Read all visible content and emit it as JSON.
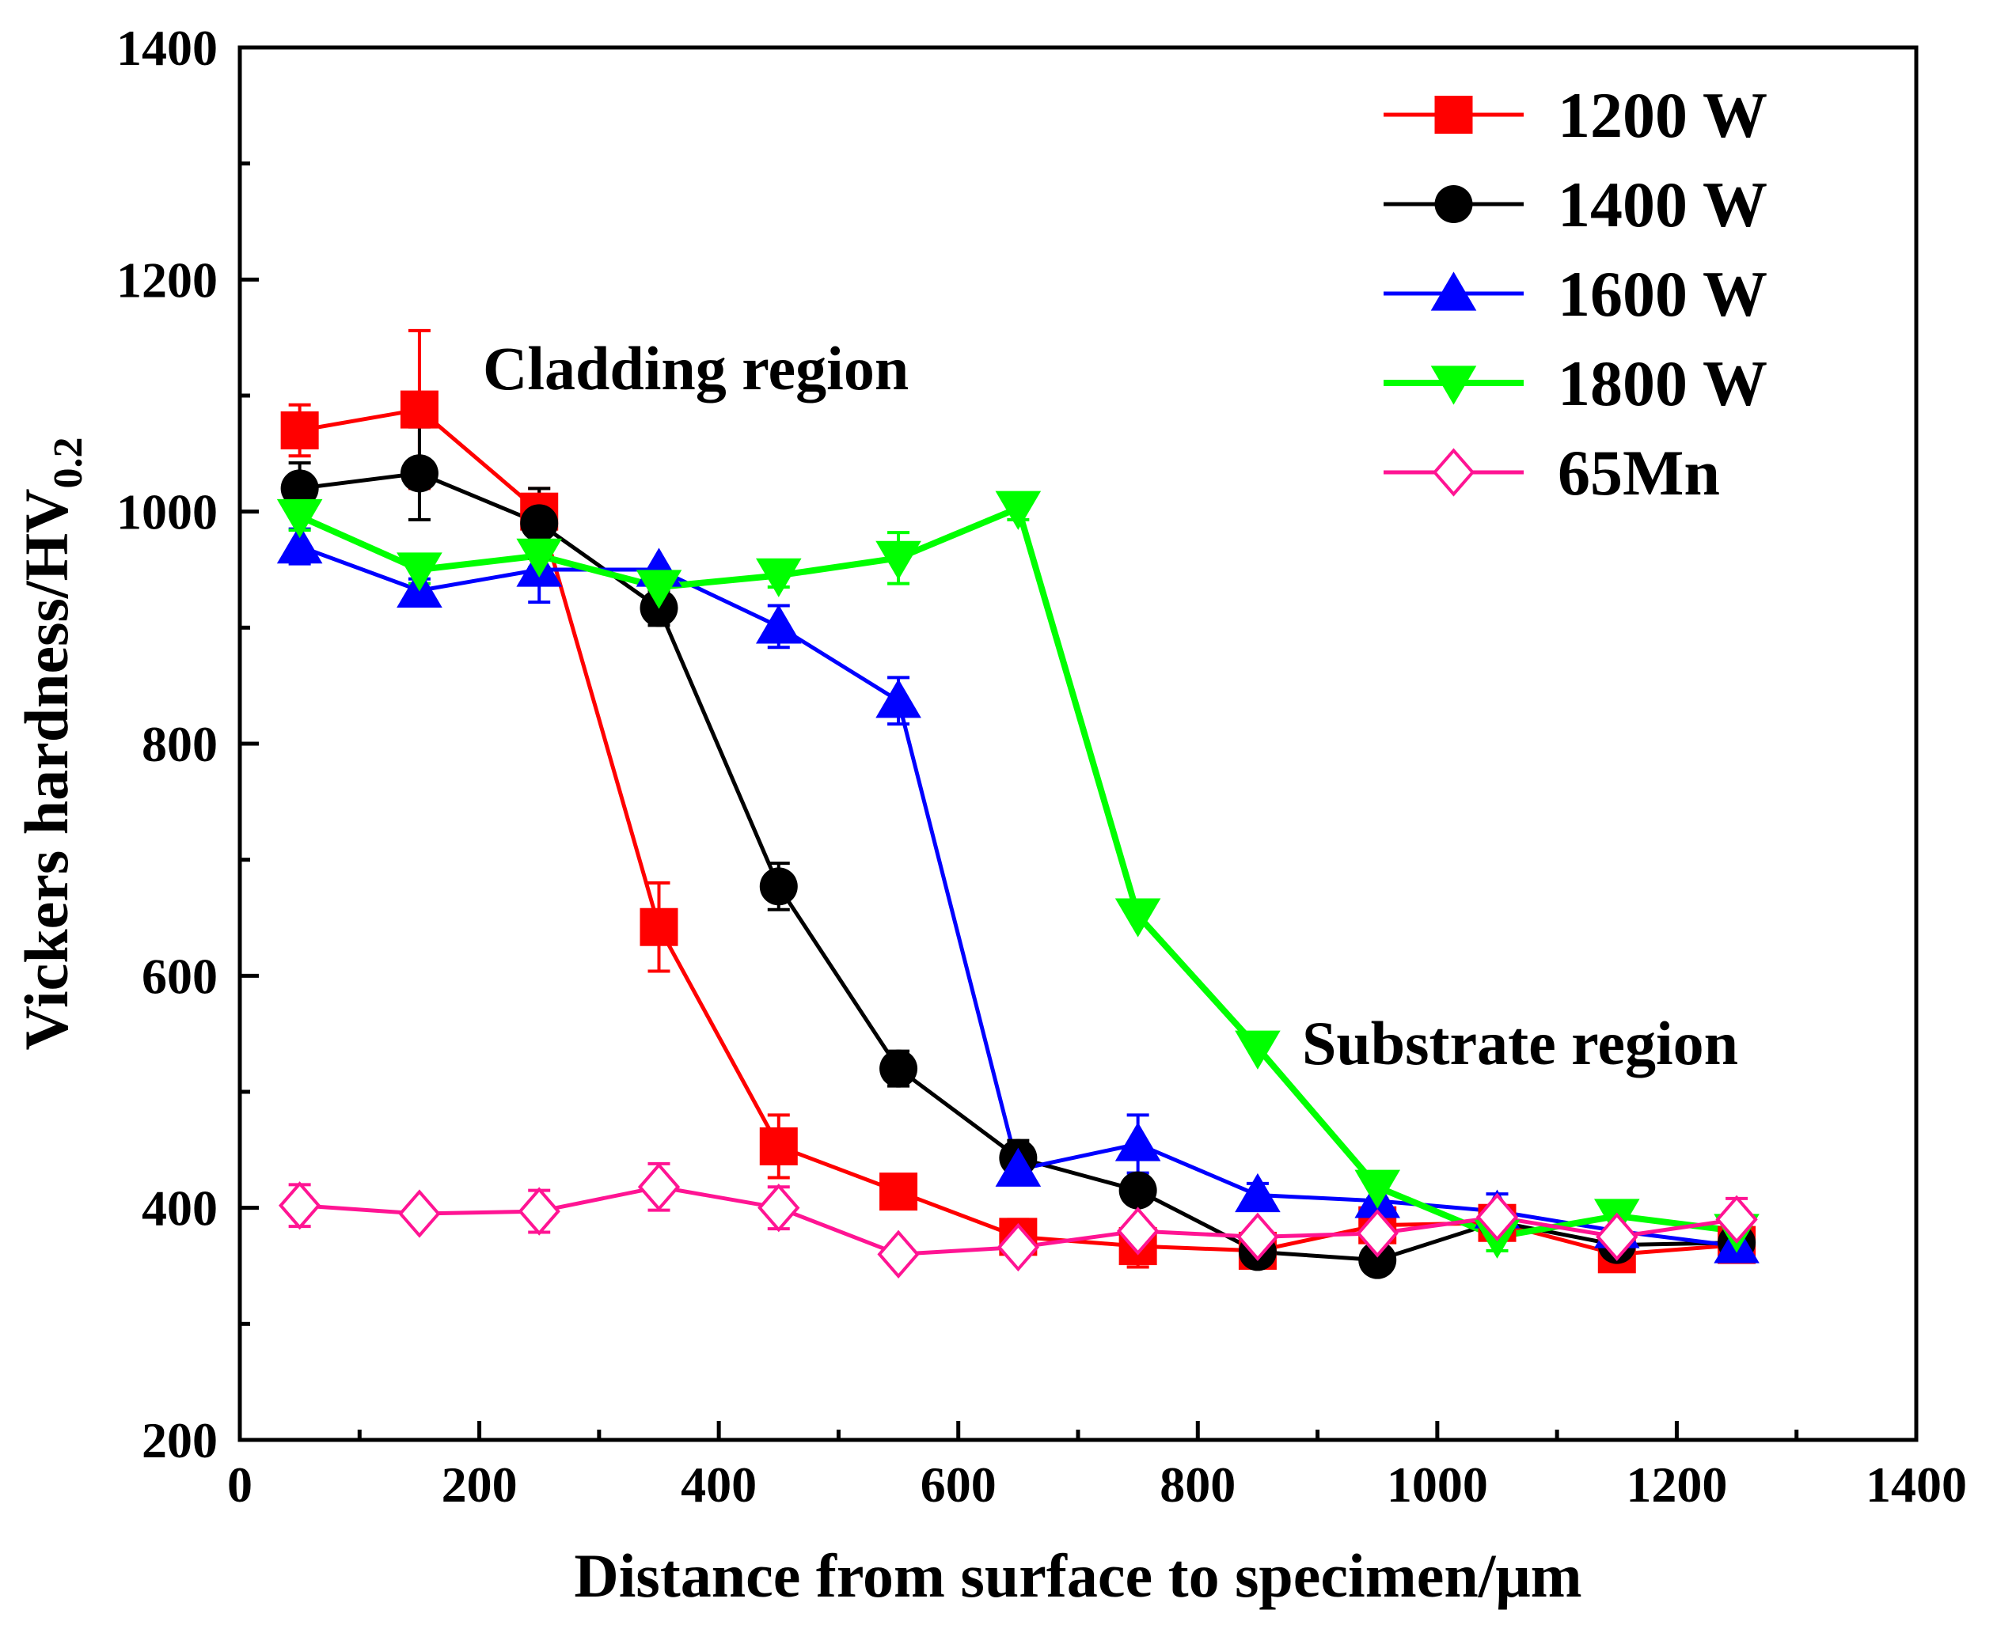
{
  "chart_data": {
    "type": "line",
    "title": "",
    "xlabel": "Distance from surface to specimen/μm",
    "ylabel_main": "Vickers hardness/HV",
    "ylabel_sub": "0.2",
    "xlim": [
      0,
      1400
    ],
    "ylim": [
      200,
      1400
    ],
    "xticks": [
      0,
      200,
      400,
      600,
      800,
      1000,
      1200,
      1400
    ],
    "yticks": [
      200,
      400,
      600,
      800,
      1000,
      1200,
      1400
    ],
    "xtick_labels": [
      "0",
      "200",
      "400",
      "600",
      "800",
      "1000",
      "1200",
      "1400"
    ],
    "ytick_labels": [
      "200",
      "400",
      "600",
      "800",
      "1000",
      "1200",
      "1400"
    ],
    "grid": false,
    "legend_position": "top-right",
    "annotations": [
      "Cladding region",
      "Substrate region"
    ],
    "x": [
      50,
      150,
      250,
      350,
      450,
      550,
      650,
      750,
      850,
      950,
      1050,
      1150,
      1250
    ],
    "series": [
      {
        "name": "1200 W",
        "color": "#ff0000",
        "marker": "square",
        "values": [
          1070,
          1088,
          1000,
          642,
          453,
          414,
          375,
          367,
          363,
          385,
          387,
          360,
          368
        ],
        "errors": [
          22,
          68,
          20,
          38,
          27,
          0,
          15,
          18,
          0,
          0,
          0,
          0,
          0
        ]
      },
      {
        "name": "1400 W",
        "color": "#000000",
        "marker": "circle",
        "values": [
          1020,
          1033,
          990,
          917,
          677,
          520,
          443,
          415,
          362,
          355,
          388,
          368,
          370
        ],
        "errors": [
          22,
          40,
          30,
          15,
          20,
          15,
          15,
          0,
          0,
          10,
          0,
          0,
          0
        ]
      },
      {
        "name": "1600 W",
        "color": "#0000ff",
        "marker": "triangle-up",
        "values": [
          970,
          932,
          950,
          950,
          901,
          837,
          433,
          455,
          411,
          406,
          397,
          380,
          367
        ],
        "errors": [
          15,
          10,
          28,
          0,
          18,
          20,
          0,
          25,
          10,
          0,
          15,
          0,
          0
        ]
      },
      {
        "name": "1800 W",
        "color": "#00ff00",
        "marker": "triangle-down",
        "values": [
          996,
          950,
          962,
          935,
          945,
          960,
          1003,
          652,
          538,
          418,
          375,
          393,
          380
        ],
        "errors": [
          12,
          12,
          10,
          0,
          10,
          22,
          10,
          0,
          0,
          10,
          12,
          0,
          0
        ]
      },
      {
        "name": "65Mn",
        "color": "#ff1493",
        "marker": "diamond-open",
        "values": [
          402,
          395,
          397,
          418,
          400,
          360,
          366,
          380,
          375,
          378,
          392,
          375,
          390
        ],
        "errors": [
          18,
          0,
          18,
          20,
          18,
          0,
          0,
          0,
          0,
          0,
          0,
          0,
          18
        ]
      }
    ]
  }
}
